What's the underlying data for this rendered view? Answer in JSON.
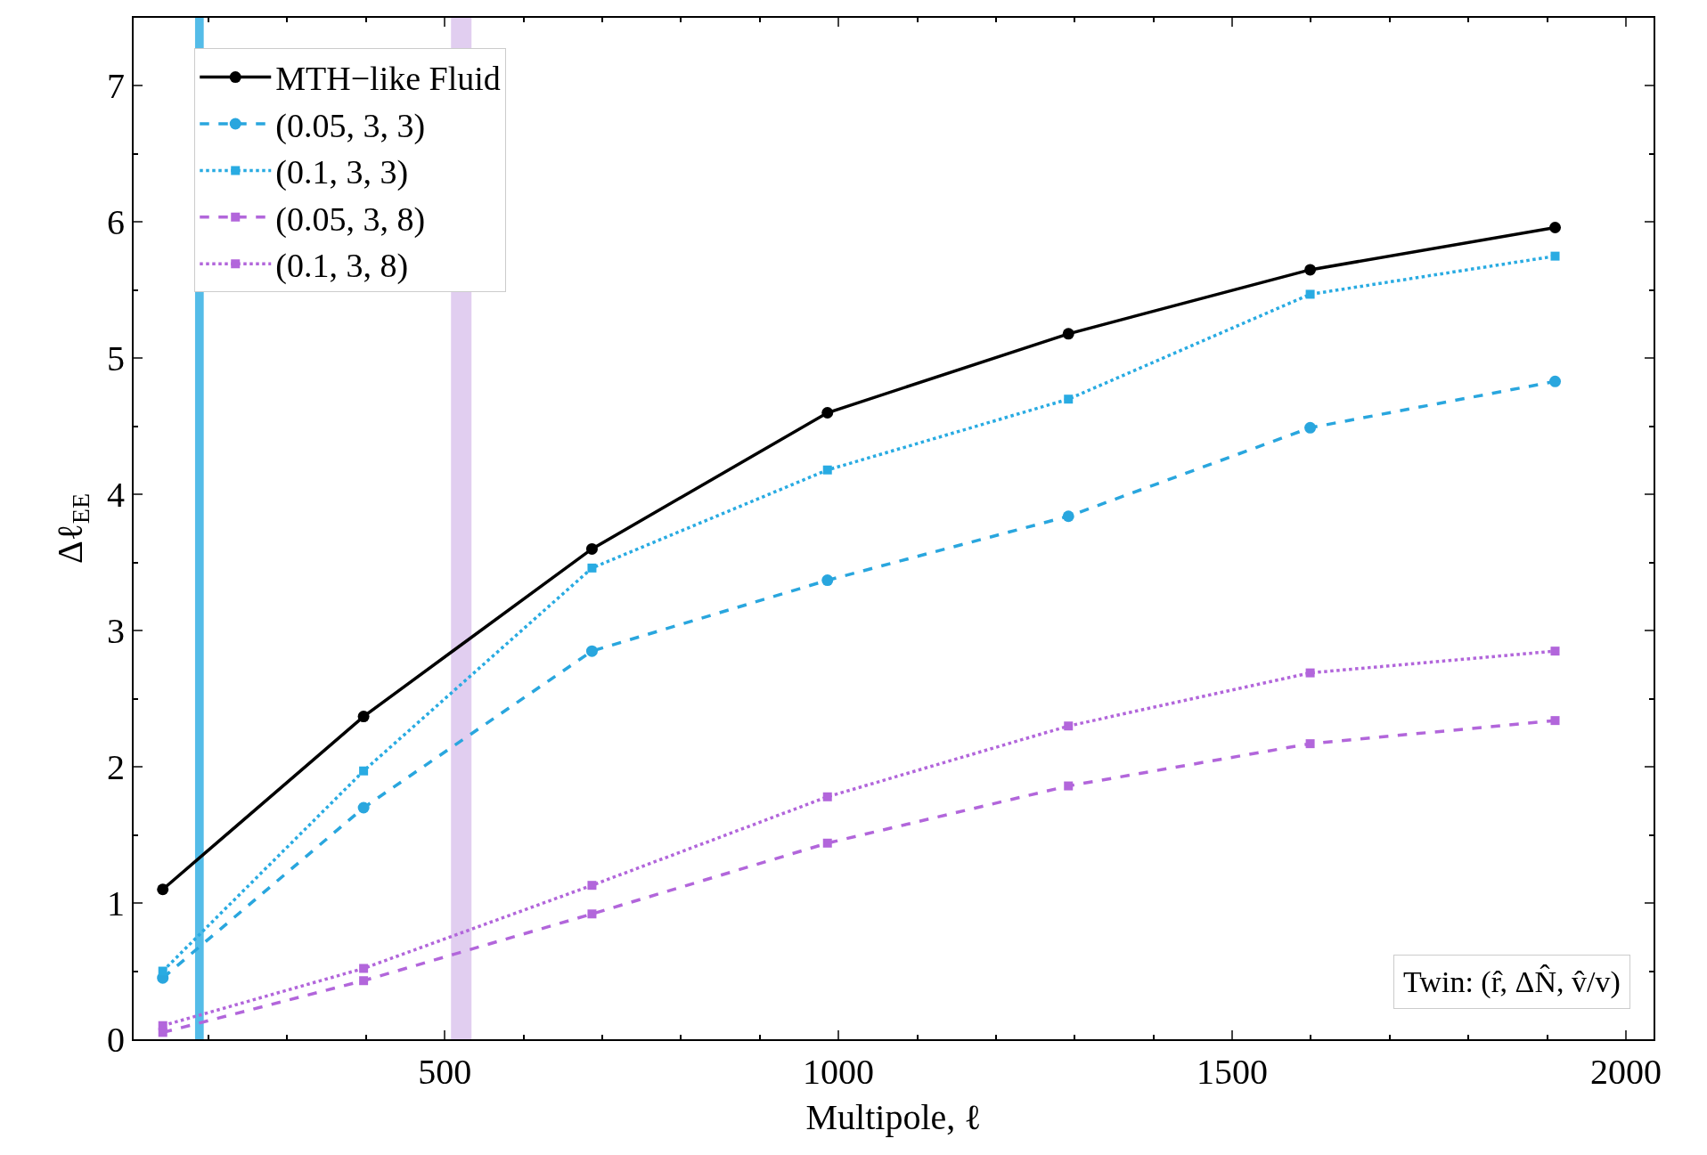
{
  "chart_data": {
    "type": "line",
    "xlabel": "Multipole, ℓ",
    "ylabel": "Δℓ$_{EE}$",
    "x": [
      142,
      397,
      687,
      986,
      1292,
      1599,
      1910
    ],
    "xlim": [
      105,
      2035
    ],
    "xticks": [
      500,
      1000,
      1500,
      2000
    ],
    "ylim": [
      0,
      7.5
    ],
    "yticks": [
      0,
      1,
      2,
      3,
      4,
      5,
      6,
      7
    ],
    "grid": false,
    "legend": "top left",
    "series": [
      {
        "name": "MTH−like Fluid",
        "color": "#000000",
        "line_style": "solid",
        "marker": "circle",
        "values": [
          1.1,
          2.37,
          3.6,
          4.6,
          5.18,
          5.65,
          5.96
        ]
      },
      {
        "name": "(0.05, 3, 3)",
        "color": "#29a6de",
        "line_style": "dashed",
        "marker": "circle",
        "values": [
          0.45,
          1.7,
          2.85,
          3.37,
          3.84,
          4.49,
          4.83
        ]
      },
      {
        "name": "(0.1, 3, 3)",
        "color": "#29abe2",
        "line_style": "dotted",
        "marker": "square",
        "values": [
          0.5,
          1.97,
          3.46,
          4.18,
          4.7,
          5.47,
          5.75
        ]
      },
      {
        "name": "(0.05, 3, 8)",
        "color": "#b266db",
        "line_style": "dashed",
        "marker": "square",
        "values": [
          0.05,
          0.43,
          0.92,
          1.44,
          1.86,
          2.17,
          2.34
        ]
      },
      {
        "name": "(0.1, 3, 8)",
        "color": "#b266db",
        "line_style": "dotted",
        "marker": "square",
        "values": [
          0.1,
          0.52,
          1.13,
          1.78,
          2.3,
          2.69,
          2.85
        ]
      }
    ],
    "bands": [
      {
        "axis": "x",
        "from": 183,
        "to": 194,
        "color": "#29abe2"
      },
      {
        "axis": "x",
        "from": 508,
        "to": 534,
        "color": "#d9c2ec"
      }
    ],
    "annotations": [
      "Twin: (r̂, ΔN̂, v̂/v)"
    ]
  }
}
